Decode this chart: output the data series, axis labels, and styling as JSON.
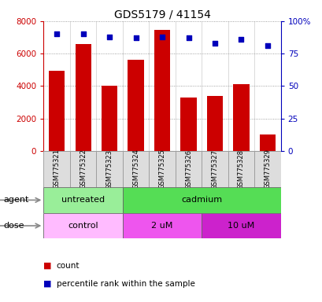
{
  "title": "GDS5179 / 41154",
  "samples": [
    "GSM775321",
    "GSM775322",
    "GSM775323",
    "GSM775324",
    "GSM775325",
    "GSM775326",
    "GSM775327",
    "GSM775328",
    "GSM775329"
  ],
  "counts": [
    4950,
    6600,
    4000,
    5600,
    7450,
    3300,
    3400,
    4100,
    1000
  ],
  "percentile": [
    90,
    90,
    88,
    87,
    88,
    87,
    83,
    86,
    81
  ],
  "ylim_left": [
    0,
    8000
  ],
  "ylim_right": [
    0,
    100
  ],
  "yticks_left": [
    0,
    2000,
    4000,
    6000,
    8000
  ],
  "yticks_right": [
    0,
    25,
    50,
    75,
    100
  ],
  "bar_color": "#cc0000",
  "dot_color": "#0000bb",
  "agent_groups": [
    {
      "label": "untreated",
      "start": 0,
      "end": 3,
      "color": "#99ee99"
    },
    {
      "label": "cadmium",
      "start": 3,
      "end": 9,
      "color": "#55dd55"
    }
  ],
  "dose_groups": [
    {
      "label": "control",
      "start": 0,
      "end": 3,
      "color": "#ffbbff"
    },
    {
      "label": "2 uM",
      "start": 3,
      "end": 6,
      "color": "#ee55ee"
    },
    {
      "label": "10 uM",
      "start": 6,
      "end": 9,
      "color": "#cc22cc"
    }
  ],
  "legend_count_color": "#cc0000",
  "legend_dot_color": "#0000bb",
  "bg_color": "#ffffff",
  "grid_color": "#888888",
  "left_axis_color": "#cc0000",
  "right_axis_color": "#0000bb",
  "sample_bg_color": "#dddddd"
}
